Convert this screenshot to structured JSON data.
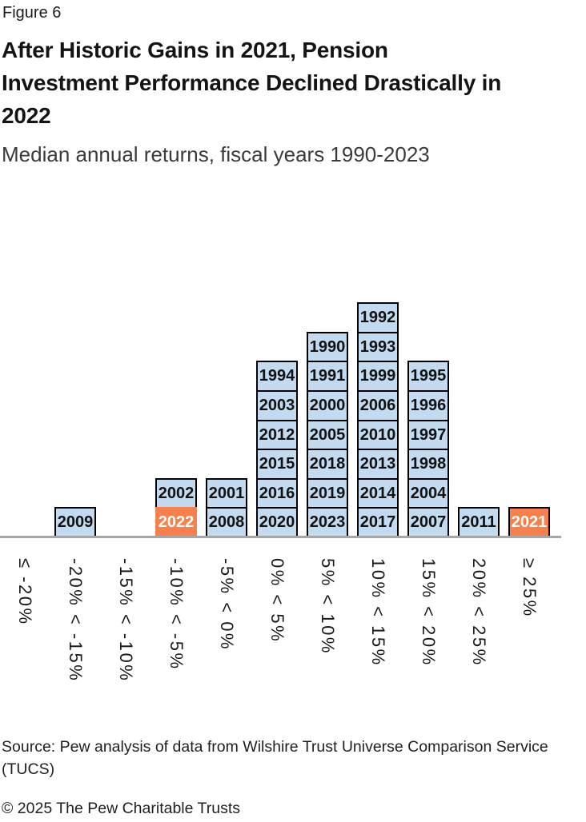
{
  "figure_label": "Figure 6",
  "title": "After Historic Gains in 2021, Pension Investment Performance Declined Drastically in 2022",
  "subtitle": "Median annual returns, fiscal years 1990-2023",
  "source_line": "Source: Pew analysis of data from Wilshire Trust Universe Comparison Service (TUCS)",
  "copyright_line": "© 2025 The Pew Charitable Trusts",
  "colors": {
    "box_fill": "#C2DBF0",
    "box_border": "#000000",
    "highlight_fill": "#F8804C",
    "highlight_text": "#FFFFFF",
    "year_text": "#111111",
    "axis_line": "#A6A6A6"
  },
  "chart_data": {
    "type": "bar",
    "subtype": "stacked-year-bin-histogram",
    "title": "After Historic Gains in 2021, Pension Investment Performance Declined Drastically in 2022",
    "subtitle": "Median annual returns, fiscal years 1990-2023",
    "xlabel": "",
    "ylabel": "",
    "x_tick_rotation": "vertical",
    "grid": false,
    "legend": "none",
    "categories": [
      "≤ -20%",
      "-20% < -15%",
      "-15% < -10%",
      "-10% < -5%",
      "-5% < 0%",
      "0% < 5%",
      "5% < 10%",
      "10% < 15%",
      "15% < 20%",
      "20% < 25%",
      "≥ 25%"
    ],
    "values": [
      0,
      1,
      0,
      2,
      2,
      6,
      7,
      8,
      6,
      1,
      1
    ],
    "columns": [
      {
        "bin": "≤ -20%",
        "years": []
      },
      {
        "bin": "-20% < -15%",
        "years": [
          "2009"
        ]
      },
      {
        "bin": "-15% < -10%",
        "years": []
      },
      {
        "bin": "-10% < -5%",
        "years": [
          "2002",
          "2022"
        ]
      },
      {
        "bin": "-5% < 0%",
        "years": [
          "2001",
          "2008"
        ]
      },
      {
        "bin": "0% < 5%",
        "years": [
          "1994",
          "2003",
          "2012",
          "2015",
          "2016",
          "2020"
        ]
      },
      {
        "bin": "5% < 10%",
        "years": [
          "1990",
          "1991",
          "2000",
          "2005",
          "2018",
          "2019",
          "2023"
        ]
      },
      {
        "bin": "10% < 15%",
        "years": [
          "1992",
          "1993",
          "1999",
          "2006",
          "2010",
          "2013",
          "2014",
          "2017"
        ]
      },
      {
        "bin": "15% < 20%",
        "years": [
          "1995",
          "1996",
          "1997",
          "1998",
          "2004",
          "2007"
        ]
      },
      {
        "bin": "20% < 25%",
        "years": [
          "2011"
        ]
      },
      {
        "bin": "≥ 25%",
        "years": [
          "2021"
        ]
      }
    ],
    "highlighted_years": [
      "2022",
      "2021"
    ],
    "borderless_years": [
      "2022"
    ]
  }
}
